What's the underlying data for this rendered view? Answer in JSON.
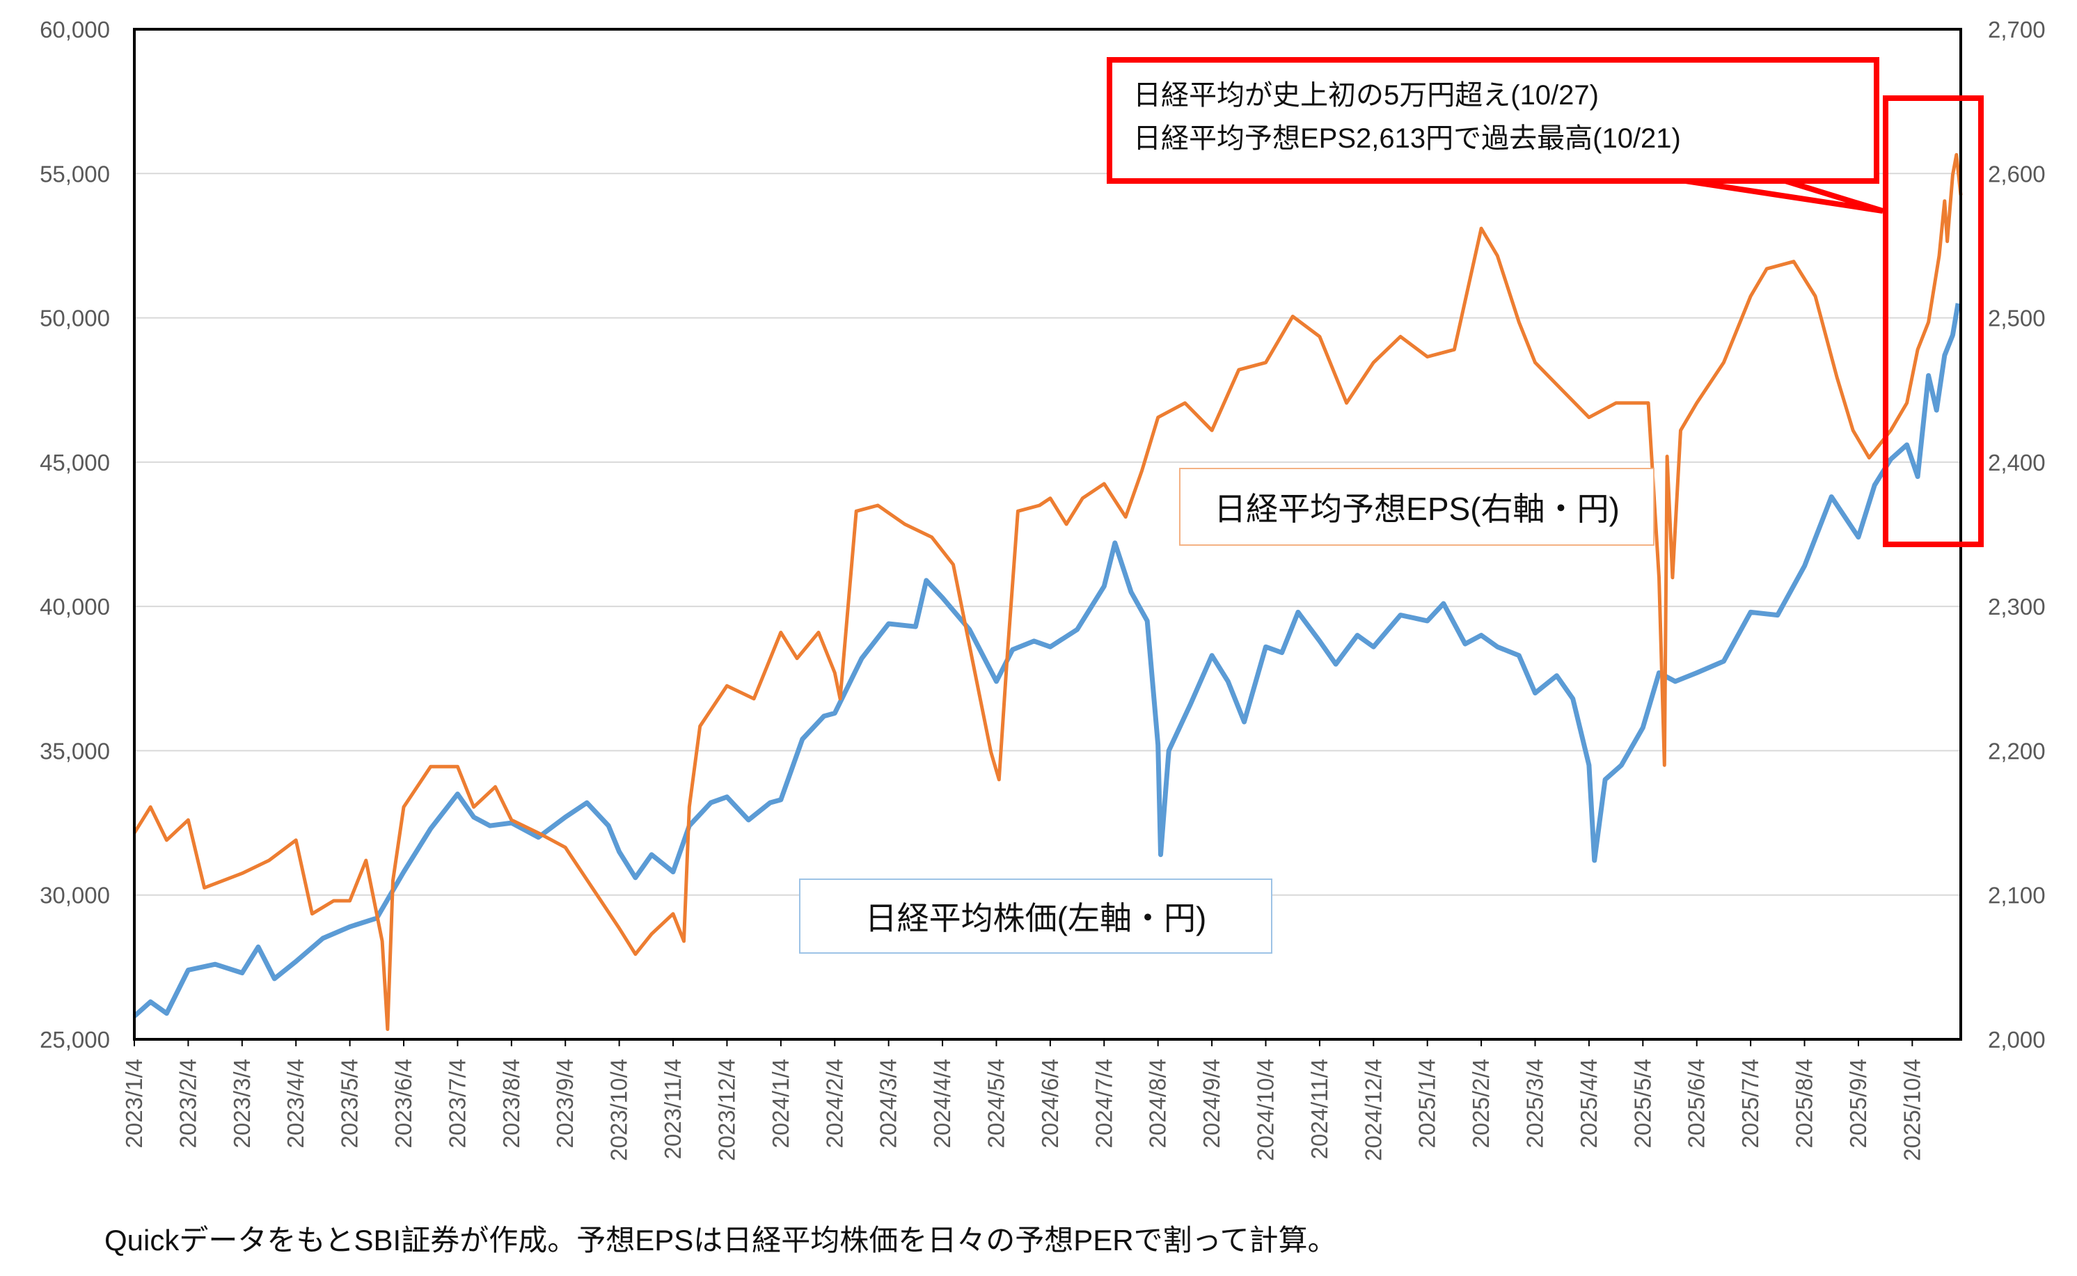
{
  "chart_data": {
    "type": "line",
    "title": "",
    "xlabel": "",
    "ylabel_left": "",
    "ylabel_right": "",
    "x_unit": "months since 2023/1/4",
    "xlim": [
      0,
      33.9
    ],
    "ylim_left": [
      25000,
      60000
    ],
    "ylim_right": [
      2000,
      2700
    ],
    "grid": true,
    "left_ticks": [
      "25,000",
      "30,000",
      "35,000",
      "40,000",
      "45,000",
      "50,000",
      "55,000",
      "60,000"
    ],
    "left_tick_values": [
      25000,
      30000,
      35000,
      40000,
      45000,
      50000,
      55000,
      60000
    ],
    "right_ticks": [
      "2,000",
      "2,100",
      "2,200",
      "2,300",
      "2,400",
      "2,500",
      "2,600",
      "2,700"
    ],
    "right_tick_values": [
      2000,
      2100,
      2200,
      2300,
      2400,
      2500,
      2600,
      2700
    ],
    "x_ticks": [
      "2023/1/4",
      "2023/2/4",
      "2023/3/4",
      "2023/4/4",
      "2023/5/4",
      "2023/6/4",
      "2023/7/4",
      "2023/8/4",
      "2023/9/4",
      "2023/10/4",
      "2023/11/4",
      "2023/12/4",
      "2024/1/4",
      "2024/2/4",
      "2024/3/4",
      "2024/4/4",
      "2024/5/4",
      "2024/6/4",
      "2024/7/4",
      "2024/8/4",
      "2024/9/4",
      "2024/10/4",
      "2024/11/4",
      "2024/12/4",
      "2025/1/4",
      "2025/2/4",
      "2025/3/4",
      "2025/4/4",
      "2025/5/4",
      "2025/6/4",
      "2025/7/4",
      "2025/8/4",
      "2025/9/4",
      "2025/10/4"
    ],
    "series": [
      {
        "name": "日経平均株価(左軸・円)",
        "axis": "left",
        "color": "#5B9BD5",
        "points": [
          [
            0,
            25800
          ],
          [
            0.3,
            26300
          ],
          [
            0.6,
            25900
          ],
          [
            1,
            27400
          ],
          [
            1.5,
            27600
          ],
          [
            2,
            27300
          ],
          [
            2.3,
            28200
          ],
          [
            2.6,
            27100
          ],
          [
            3,
            27700
          ],
          [
            3.5,
            28500
          ],
          [
            4,
            28900
          ],
          [
            4.5,
            29200
          ],
          [
            5,
            30800
          ],
          [
            5.5,
            32300
          ],
          [
            6,
            33500
          ],
          [
            6.3,
            32700
          ],
          [
            6.6,
            32400
          ],
          [
            7,
            32500
          ],
          [
            7.5,
            32000
          ],
          [
            8,
            32700
          ],
          [
            8.4,
            33200
          ],
          [
            8.8,
            32400
          ],
          [
            9,
            31500
          ],
          [
            9.3,
            30600
          ],
          [
            9.6,
            31400
          ],
          [
            10,
            30800
          ],
          [
            10.3,
            32400
          ],
          [
            10.7,
            33200
          ],
          [
            11,
            33400
          ],
          [
            11.4,
            32600
          ],
          [
            11.8,
            33200
          ],
          [
            12,
            33300
          ],
          [
            12.4,
            35400
          ],
          [
            12.8,
            36200
          ],
          [
            13,
            36300
          ],
          [
            13.5,
            38200
          ],
          [
            14,
            39400
          ],
          [
            14.5,
            39300
          ],
          [
            14.7,
            40900
          ],
          [
            15,
            40300
          ],
          [
            15.5,
            39200
          ],
          [
            16,
            37400
          ],
          [
            16.3,
            38500
          ],
          [
            16.7,
            38800
          ],
          [
            17,
            38600
          ],
          [
            17.5,
            39200
          ],
          [
            18,
            40700
          ],
          [
            18.2,
            42200
          ],
          [
            18.5,
            40500
          ],
          [
            18.8,
            39500
          ],
          [
            19,
            35200
          ],
          [
            19.05,
            31400
          ],
          [
            19.2,
            35000
          ],
          [
            19.6,
            36600
          ],
          [
            20,
            38300
          ],
          [
            20.3,
            37400
          ],
          [
            20.6,
            36000
          ],
          [
            21,
            38600
          ],
          [
            21.3,
            38400
          ],
          [
            21.6,
            39800
          ],
          [
            22,
            38800
          ],
          [
            22.3,
            38000
          ],
          [
            22.7,
            39000
          ],
          [
            23,
            38600
          ],
          [
            23.5,
            39700
          ],
          [
            24,
            39500
          ],
          [
            24.3,
            40100
          ],
          [
            24.7,
            38700
          ],
          [
            25,
            39000
          ],
          [
            25.3,
            38600
          ],
          [
            25.7,
            38300
          ],
          [
            26,
            37000
          ],
          [
            26.4,
            37600
          ],
          [
            26.7,
            36800
          ],
          [
            27,
            34500
          ],
          [
            27.1,
            31200
          ],
          [
            27.3,
            34000
          ],
          [
            27.6,
            34500
          ],
          [
            28,
            35800
          ],
          [
            28.3,
            37700
          ],
          [
            28.6,
            37400
          ],
          [
            29,
            37700
          ],
          [
            29.5,
            38100
          ],
          [
            30,
            39800
          ],
          [
            30.5,
            39700
          ],
          [
            31,
            41400
          ],
          [
            31.5,
            43800
          ],
          [
            32,
            42400
          ],
          [
            32.3,
            44200
          ],
          [
            32.6,
            45100
          ],
          [
            32.9,
            45600
          ],
          [
            33.1,
            44500
          ],
          [
            33.3,
            48000
          ],
          [
            33.45,
            46800
          ],
          [
            33.6,
            48700
          ],
          [
            33.75,
            49400
          ],
          [
            33.85,
            50500
          ]
        ]
      },
      {
        "name": "日経平均予想EPS(右軸・円)",
        "axis": "right",
        "color": "#ED7D31",
        "points": [
          [
            0,
            2143
          ],
          [
            0.3,
            2161
          ],
          [
            0.6,
            2138
          ],
          [
            1,
            2152
          ],
          [
            1.3,
            2105
          ],
          [
            2,
            2115
          ],
          [
            2.5,
            2124
          ],
          [
            3,
            2138
          ],
          [
            3.3,
            2087
          ],
          [
            3.7,
            2096
          ],
          [
            4,
            2096
          ],
          [
            4.3,
            2124
          ],
          [
            4.6,
            2068
          ],
          [
            4.7,
            2007
          ],
          [
            4.8,
            2110
          ],
          [
            5,
            2161
          ],
          [
            5.5,
            2189
          ],
          [
            6,
            2189
          ],
          [
            6.3,
            2161
          ],
          [
            6.7,
            2175
          ],
          [
            7,
            2152
          ],
          [
            7.5,
            2143
          ],
          [
            8,
            2133
          ],
          [
            8.5,
            2105
          ],
          [
            9,
            2077
          ],
          [
            9.3,
            2059
          ],
          [
            9.6,
            2073
          ],
          [
            10,
            2087
          ],
          [
            10.2,
            2068
          ],
          [
            10.3,
            2161
          ],
          [
            10.5,
            2217
          ],
          [
            11,
            2245
          ],
          [
            11.5,
            2236
          ],
          [
            12,
            2282
          ],
          [
            12.3,
            2264
          ],
          [
            12.7,
            2282
          ],
          [
            13,
            2254
          ],
          [
            13.1,
            2236
          ],
          [
            13.4,
            2366
          ],
          [
            13.8,
            2370
          ],
          [
            14.3,
            2357
          ],
          [
            14.8,
            2348
          ],
          [
            15.2,
            2329
          ],
          [
            15.5,
            2273
          ],
          [
            15.9,
            2199
          ],
          [
            16.05,
            2180
          ],
          [
            16.2,
            2264
          ],
          [
            16.4,
            2366
          ],
          [
            16.8,
            2370
          ],
          [
            17,
            2375
          ],
          [
            17.3,
            2357
          ],
          [
            17.6,
            2375
          ],
          [
            18,
            2385
          ],
          [
            18.4,
            2362
          ],
          [
            18.7,
            2394
          ],
          [
            19,
            2431
          ],
          [
            19.5,
            2441
          ],
          [
            20,
            2422
          ],
          [
            20.5,
            2464
          ],
          [
            21,
            2469
          ],
          [
            21.5,
            2501
          ],
          [
            22,
            2487
          ],
          [
            22.5,
            2441
          ],
          [
            23,
            2469
          ],
          [
            23.5,
            2487
          ],
          [
            24,
            2473
          ],
          [
            24.5,
            2478
          ],
          [
            25,
            2562
          ],
          [
            25.3,
            2543
          ],
          [
            25.7,
            2497
          ],
          [
            26,
            2469
          ],
          [
            26.5,
            2450
          ],
          [
            27,
            2431
          ],
          [
            27.5,
            2441
          ],
          [
            28.1,
            2441
          ],
          [
            28.3,
            2320
          ],
          [
            28.4,
            2190
          ],
          [
            28.45,
            2404
          ],
          [
            28.55,
            2320
          ],
          [
            28.7,
            2422
          ],
          [
            29,
            2441
          ],
          [
            29.5,
            2469
          ],
          [
            30,
            2515
          ],
          [
            30.3,
            2534
          ],
          [
            30.8,
            2539
          ],
          [
            31.2,
            2515
          ],
          [
            31.6,
            2459
          ],
          [
            31.9,
            2422
          ],
          [
            32.2,
            2403
          ],
          [
            32.6,
            2422
          ],
          [
            32.9,
            2441
          ],
          [
            33.1,
            2478
          ],
          [
            33.3,
            2497
          ],
          [
            33.5,
            2543
          ],
          [
            33.6,
            2581
          ],
          [
            33.65,
            2553
          ],
          [
            33.75,
            2599
          ],
          [
            33.82,
            2613
          ],
          [
            33.9,
            2585
          ]
        ]
      }
    ]
  },
  "labels": {
    "eps_label": "日経平均予想EPS(右軸・円)",
    "nikkei_label": "日経平均株価(左軸・円)",
    "annotation_line1": "日経平均が史上初の5万円超え(10/27)",
    "annotation_line2": "日経平均予想EPS2,613円で過去最高(10/21)",
    "footnote": "QuickデータをもとSBI証券が作成。予想EPSは日経平均株価を日々の予想PERで割って計算。"
  },
  "colors": {
    "highlight": "#FF0000",
    "grid": "#D9D9D9"
  }
}
